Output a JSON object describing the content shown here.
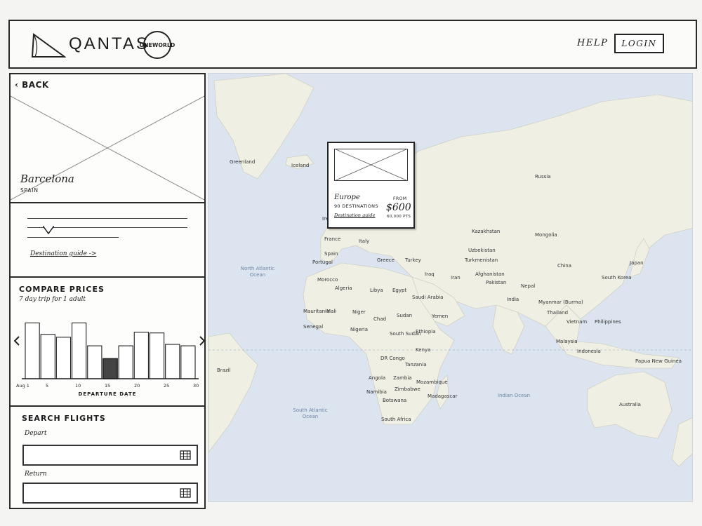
{
  "header": {
    "brand": "QANTAS",
    "alliance_badge": "ONEWORLD",
    "help_label": "HELP",
    "login_label": "LOGIN",
    "logo_icon": "qantas-triangle-logo"
  },
  "sidebar": {
    "back_label": "BACK",
    "back_icon": "chevron-left-icon",
    "destination": {
      "city": "Barcelona",
      "country": "SPAIN"
    },
    "guide_link": "Destination guide ->",
    "compare_prices": {
      "title": "COMPARE PRICES",
      "subtitle": "7 day trip for 1 adult",
      "x_axis_title": "DEPARTURE DATE",
      "x_ticks": [
        "Aug 1",
        "5",
        "10",
        "15",
        "20",
        "25",
        "30"
      ],
      "prev_icon": "chevron-left-icon",
      "next_icon": "chevron-right-icon"
    },
    "search_flights": {
      "title": "SEARCH FLIGHTS",
      "depart_label": "Depart",
      "return_label": "Return",
      "calendar_icon": "calendar-icon"
    }
  },
  "chart_data": {
    "type": "bar",
    "x": [
      1,
      2,
      3,
      4,
      5,
      6,
      7,
      8,
      9,
      10,
      11
    ],
    "values": [
      0.78,
      0.62,
      0.58,
      0.78,
      0.46,
      0.28,
      0.46,
      0.65,
      0.64,
      0.48,
      0.46
    ],
    "highlighted_index": 5,
    "xlabel": "DEPARTURE DATE",
    "ylim": [
      0,
      1
    ]
  },
  "map": {
    "popup": {
      "region": "Europe",
      "destinations": "90 DESTINATIONS",
      "guide_link": "Destination guide",
      "from_label": "FROM",
      "price": "$600",
      "points": "60,000 PTS"
    },
    "country_labels": [
      "Greenland",
      "Iceland",
      "Ireland",
      "Russia",
      "Kazakhstan",
      "Mongolia",
      "Uzbekistan",
      "Turkmenistan",
      "Afghanistan",
      "China",
      "South Korea",
      "Japan",
      "Spain",
      "Portugal",
      "France",
      "Italy",
      "Greece",
      "Turkey",
      "Iraq",
      "Iran",
      "Pakistan",
      "India",
      "Nepal",
      "Myanmar (Burma)",
      "Thailand",
      "Vietnam",
      "Philippines",
      "Malaysia",
      "Indonesia",
      "Papua New Guinea",
      "Australia",
      "Morocco",
      "Algeria",
      "Libya",
      "Egypt",
      "Saudi Arabia",
      "Yemen",
      "Mali",
      "Niger",
      "Chad",
      "Sudan",
      "Mauritania",
      "Senegal",
      "Nigeria",
      "South Sudan",
      "Ethiopia",
      "Kenya",
      "DR Congo",
      "Tanzania",
      "Angola",
      "Zambia",
      "Namibia",
      "Zimbabwe",
      "Botswana",
      "Mozambique",
      "Madagascar",
      "South Africa",
      "Brazil"
    ],
    "ocean_labels": [
      "North Atlantic Ocean",
      "South Atlantic Ocean",
      "Indian Ocean"
    ]
  }
}
